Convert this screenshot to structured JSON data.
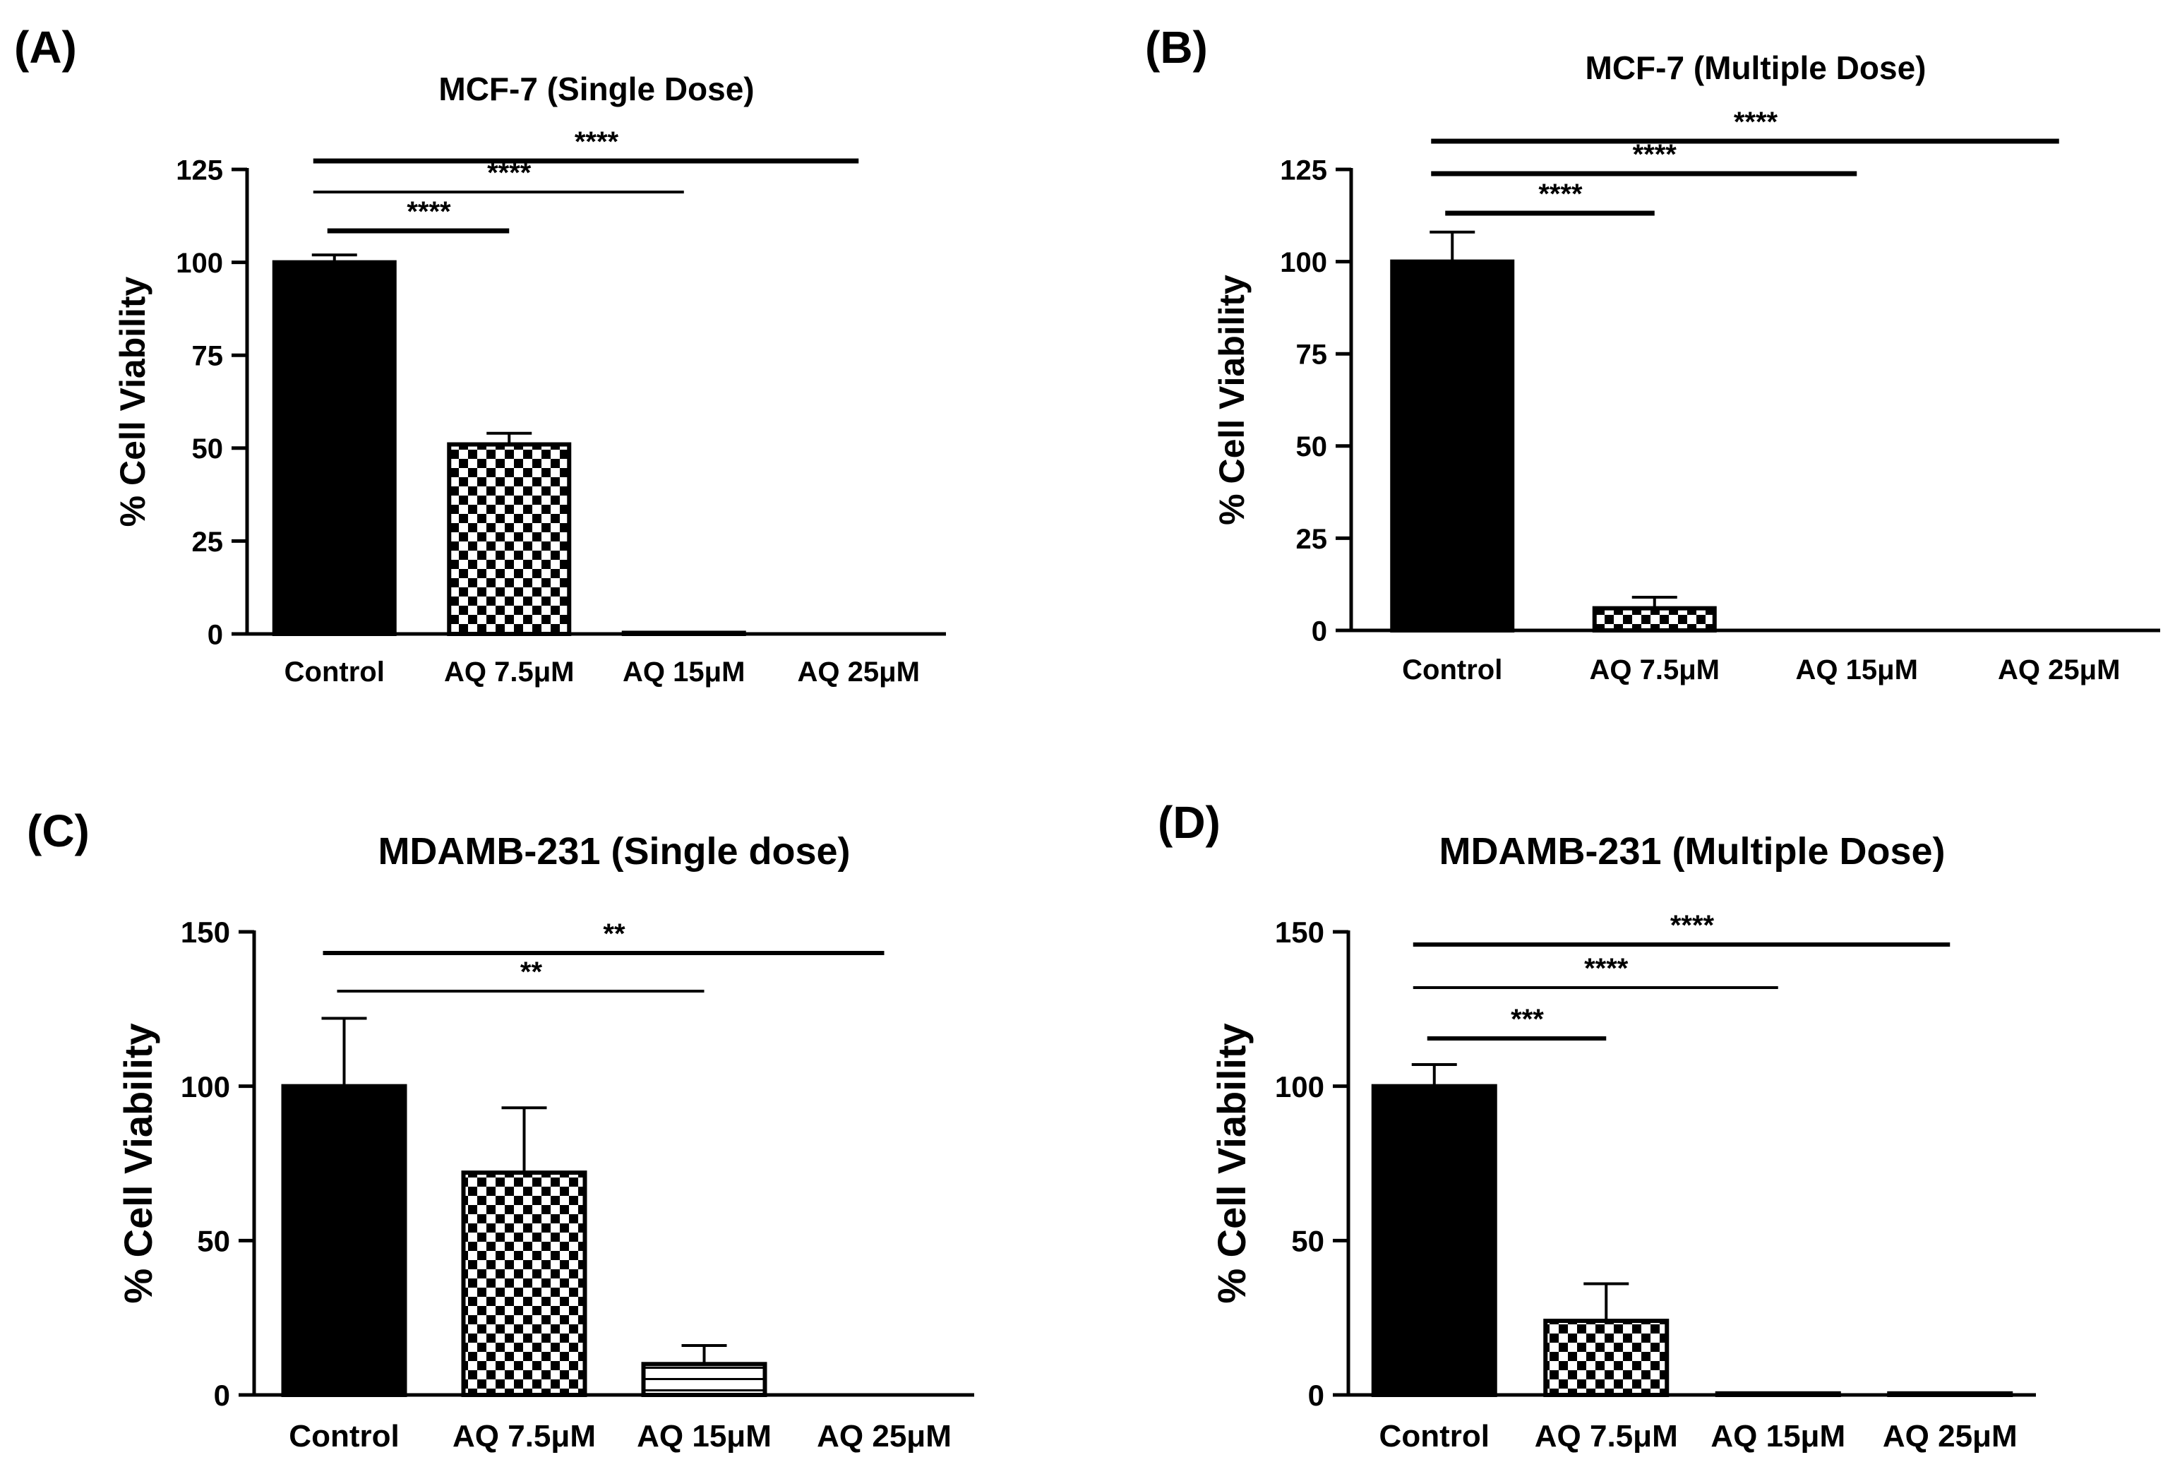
{
  "panels": [
    "(A)",
    "(B)",
    "(C)",
    "(D)"
  ],
  "chart_data": [
    {
      "panel": "(A)",
      "type": "bar",
      "title": "MCF-7 (Single Dose)",
      "xlabel": "",
      "ylabel": "% Cell Viability",
      "categories": [
        "Control",
        "AQ 7.5μM",
        "AQ 15μM",
        "AQ 25μM"
      ],
      "values": [
        100,
        51,
        0.3,
        0
      ],
      "errors": [
        2,
        3,
        0,
        0
      ],
      "patterns": [
        "solid",
        "checker",
        "lines",
        "none"
      ],
      "yticks": [
        0,
        25,
        50,
        75,
        100,
        125
      ],
      "ylim": [
        0,
        125
      ],
      "significance": [
        {
          "from": 0,
          "to": 1,
          "label": "****"
        },
        {
          "from": 0,
          "to": 2,
          "label": "****"
        },
        {
          "from": 0,
          "to": 3,
          "label": "****"
        }
      ]
    },
    {
      "panel": "(B)",
      "type": "bar",
      "title": "MCF-7 (Multiple Dose)",
      "xlabel": "",
      "ylabel": "% Cell Viability",
      "categories": [
        "Control",
        "AQ 7.5μM",
        "AQ 15μM",
        "AQ 25μM"
      ],
      "values": [
        100,
        6,
        0,
        0
      ],
      "errors": [
        8,
        3,
        0,
        0
      ],
      "patterns": [
        "solid",
        "checker",
        "lines",
        "none"
      ],
      "yticks": [
        0,
        25,
        50,
        75,
        100,
        125
      ],
      "ylim": [
        0,
        125
      ],
      "significance": [
        {
          "from": 0,
          "to": 1,
          "label": "****"
        },
        {
          "from": 0,
          "to": 2,
          "label": "****"
        },
        {
          "from": 0,
          "to": 3,
          "label": "****"
        }
      ]
    },
    {
      "panel": "(C)",
      "type": "bar",
      "title": "MDAMB-231 (Single dose)",
      "xlabel": "",
      "ylabel": "% Cell Viability",
      "categories": [
        "Control",
        "AQ 7.5μM",
        "AQ 15μM",
        "AQ 25μM"
      ],
      "values": [
        100,
        72,
        10,
        0
      ],
      "errors": [
        22,
        21,
        6,
        0
      ],
      "patterns": [
        "solid",
        "checker",
        "lines",
        "none"
      ],
      "yticks": [
        0,
        50,
        100,
        150
      ],
      "ylim": [
        0,
        150
      ],
      "significance": [
        {
          "from": 0,
          "to": 2,
          "label": "**"
        },
        {
          "from": 0,
          "to": 3,
          "label": "**"
        }
      ]
    },
    {
      "panel": "(D)",
      "type": "bar",
      "title": "MDAMB-231 (Multiple Dose)",
      "xlabel": "",
      "ylabel": "% Cell Viability",
      "categories": [
        "Control",
        "AQ 7.5μM",
        "AQ 15μM",
        "AQ 25μM"
      ],
      "values": [
        100,
        24,
        0.5,
        0.5
      ],
      "errors": [
        7,
        12,
        0,
        0
      ],
      "patterns": [
        "solid",
        "checker",
        "lines",
        "none"
      ],
      "yticks": [
        0,
        50,
        100,
        150
      ],
      "ylim": [
        0,
        150
      ],
      "significance": [
        {
          "from": 0,
          "to": 1,
          "label": "***"
        },
        {
          "from": 0,
          "to": 2,
          "label": "****"
        },
        {
          "from": 0,
          "to": 3,
          "label": "****"
        }
      ]
    }
  ]
}
